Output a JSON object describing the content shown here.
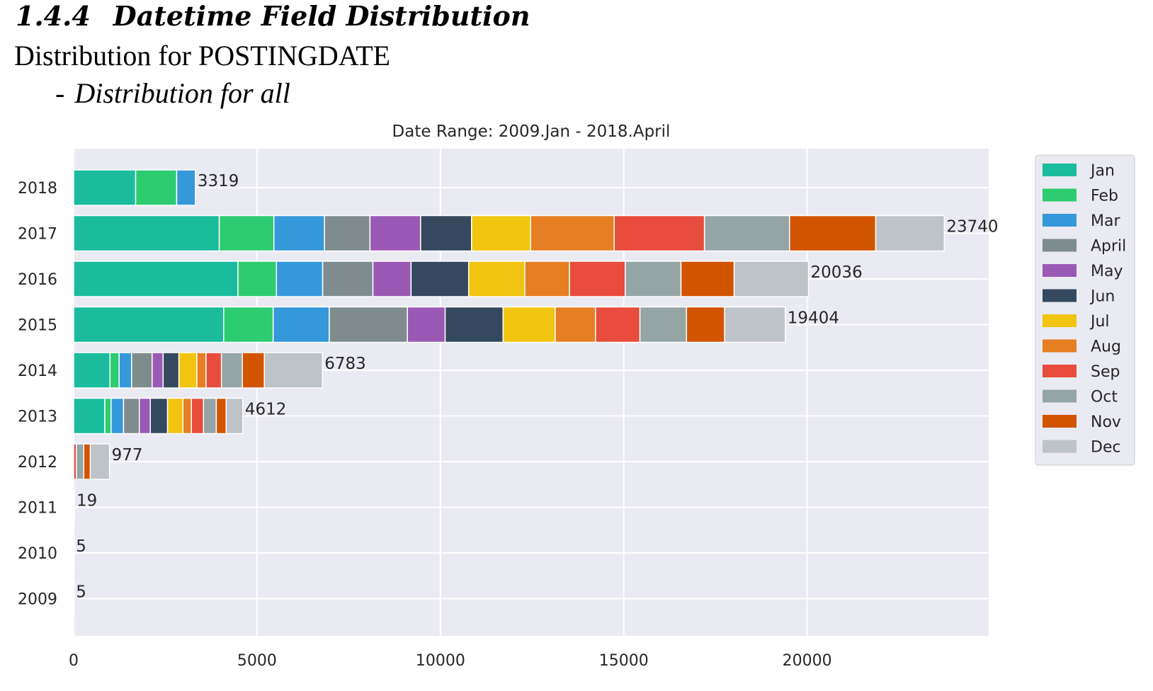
{
  "document": {
    "section_number": "1.4.4",
    "section_title": "Datetime Field Distribution",
    "subheading": "Distribution for POSTINGDATE",
    "bullet_dash": "-",
    "bullet_text": "Distribution for all"
  },
  "chart_data": {
    "type": "bar",
    "orientation": "horizontal",
    "stacked": true,
    "title": "Date Range: 2009.Jan - 2018.April",
    "xlabel": "",
    "ylabel": "",
    "xlim": [
      0,
      24950
    ],
    "xticks": [
      0,
      5000,
      10000,
      15000,
      20000
    ],
    "grid": true,
    "legend_position": "right",
    "categories": [
      "2009",
      "2010",
      "2011",
      "2012",
      "2013",
      "2014",
      "2015",
      "2016",
      "2017",
      "2018"
    ],
    "totals": [
      5,
      5,
      19,
      977,
      4612,
      6783,
      19404,
      20036,
      23740,
      3319
    ],
    "series": [
      {
        "name": "Jan",
        "color": "#1abc9c",
        "values": [
          5,
          5,
          19,
          0,
          850,
          990,
          4090,
          4480,
          3970,
          1690
        ]
      },
      {
        "name": "Feb",
        "color": "#2ecc71",
        "values": [
          0,
          0,
          0,
          0,
          170,
          250,
          1350,
          1050,
          1490,
          1120
        ]
      },
      {
        "name": "Mar",
        "color": "#3498db",
        "values": [
          0,
          0,
          0,
          0,
          340,
          340,
          1530,
          1260,
          1380,
          509
        ]
      },
      {
        "name": "April",
        "color": "#7f8c8d",
        "values": [
          0,
          0,
          0,
          0,
          430,
          560,
          2130,
          1370,
          1240,
          0
        ]
      },
      {
        "name": "May",
        "color": "#9b59b6",
        "values": [
          0,
          0,
          0,
          0,
          300,
          300,
          1030,
          1040,
          1380,
          0
        ]
      },
      {
        "name": "Jun",
        "color": "#34495e",
        "values": [
          0,
          0,
          0,
          0,
          470,
          430,
          1580,
          1570,
          1390,
          0
        ]
      },
      {
        "name": "Jul",
        "color": "#f1c40f",
        "values": [
          0,
          0,
          0,
          0,
          420,
          490,
          1420,
          1530,
          1610,
          0
        ]
      },
      {
        "name": "Aug",
        "color": "#e67e22",
        "values": [
          0,
          0,
          0,
          0,
          230,
          250,
          1100,
          1220,
          2280,
          0
        ]
      },
      {
        "name": "Sep",
        "color": "#e74c3c",
        "values": [
          0,
          0,
          0,
          75,
          330,
          420,
          1210,
          1520,
          2460,
          0
        ]
      },
      {
        "name": "Oct",
        "color": "#95a5a6",
        "values": [
          0,
          0,
          0,
          200,
          350,
          570,
          1270,
          1520,
          2320,
          0
        ]
      },
      {
        "name": "Nov",
        "color": "#d35400",
        "values": [
          0,
          0,
          0,
          180,
          270,
          600,
          1040,
          1450,
          2350,
          0
        ]
      },
      {
        "name": "Dec",
        "color": "#bdc3c7",
        "values": [
          0,
          0,
          0,
          522,
          452,
          1583,
          1654,
          2026,
          1870,
          0
        ]
      }
    ]
  }
}
